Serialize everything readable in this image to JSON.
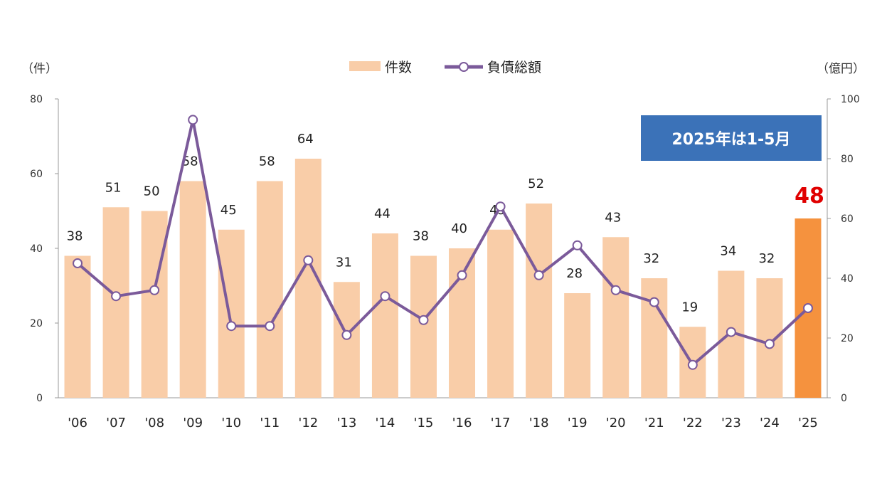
{
  "chart_data": {
    "type": "bar+line",
    "categories": [
      "'06",
      "'07",
      "'08",
      "'09",
      "'10",
      "'11",
      "'12",
      "'13",
      "'14",
      "'15",
      "'16",
      "'17",
      "'18",
      "'19",
      "'20",
      "'21",
      "'22",
      "'23",
      "'24",
      "'25"
    ],
    "series": [
      {
        "name": "件数",
        "type": "bar",
        "axis": "left",
        "values": [
          38,
          51,
          50,
          58,
          45,
          58,
          64,
          31,
          44,
          38,
          40,
          45,
          52,
          28,
          43,
          32,
          19,
          34,
          32,
          48
        ],
        "color": "#f9cda8",
        "highlight_index": 19,
        "highlight_color": "#f5923e"
      },
      {
        "name": "負債総額",
        "type": "line",
        "axis": "right",
        "values": [
          45,
          34,
          36,
          93,
          24,
          24,
          46,
          21,
          34,
          26,
          41,
          64,
          41,
          51,
          36,
          32,
          11,
          22,
          18,
          30
        ],
        "color": "#7b5a9a"
      }
    ],
    "y_left": {
      "unit": "（件）",
      "range": [
        0,
        80
      ],
      "ticks": [
        "0",
        "20",
        "40",
        "60",
        "80"
      ]
    },
    "y_right": {
      "unit": "（億円）",
      "range": [
        0,
        100
      ],
      "ticks": [
        "0",
        "20",
        "40",
        "60",
        "80",
        "100"
      ]
    },
    "annotation": "2025年は1-5月",
    "annotation_color": "#3b72b8",
    "highlight_label_color": "#e00000",
    "legend_position": "top-center",
    "grid": false
  }
}
